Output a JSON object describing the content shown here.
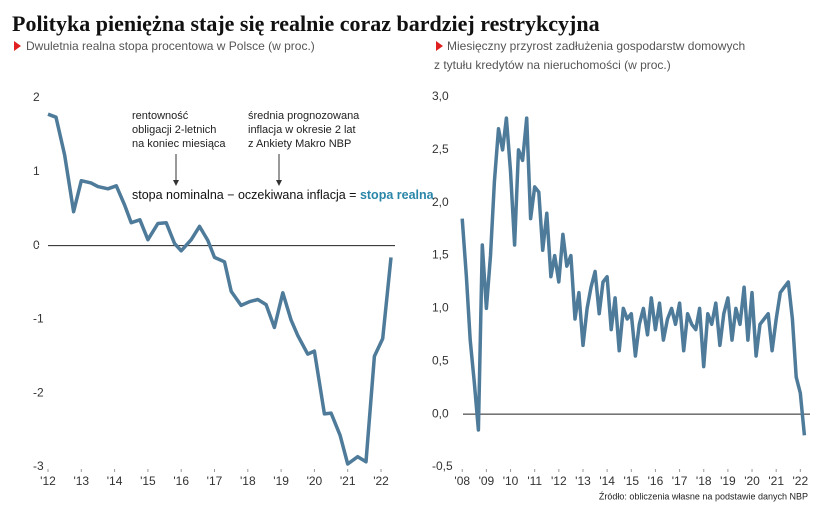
{
  "title": "Polityka pieniężna staje się realnie coraz bardziej restrykcyjna",
  "source": "Źródło: obliczenia własne na podstawie danych NBP",
  "chart_data": [
    {
      "type": "line",
      "subtitle": [
        "Dwuletnia realna stopa procentowa w Polsce (w proc.)"
      ],
      "color": "#4f7b9a",
      "x": [
        2012.0,
        2012.24,
        2012.5,
        2012.77,
        2013.0,
        2013.29,
        2013.5,
        2013.8,
        2014.05,
        2014.3,
        2014.5,
        2014.76,
        2015.0,
        2015.3,
        2015.55,
        2015.8,
        2016.0,
        2016.3,
        2016.55,
        2016.8,
        2017.0,
        2017.3,
        2017.5,
        2017.8,
        2018.05,
        2018.3,
        2018.55,
        2018.8,
        2019.05,
        2019.3,
        2019.5,
        2019.8,
        2020.0,
        2020.3,
        2020.5,
        2020.77,
        2021.0,
        2021.3,
        2021.55,
        2021.8,
        2022.05,
        2022.3
      ],
      "values": [
        1.78,
        1.74,
        1.23,
        0.46,
        0.88,
        0.85,
        0.8,
        0.77,
        0.81,
        0.55,
        0.31,
        0.35,
        0.08,
        0.3,
        0.31,
        0.03,
        -0.07,
        0.08,
        0.26,
        0.07,
        -0.16,
        -0.22,
        -0.62,
        -0.81,
        -0.76,
        -0.73,
        -0.8,
        -1.11,
        -0.64,
        -1.01,
        -1.22,
        -1.47,
        -1.43,
        -2.28,
        -2.27,
        -2.57,
        -2.96,
        -2.86,
        -2.93,
        -1.5,
        -1.26,
        -0.16
      ],
      "xlim": [
        2011.76,
        2022.42
      ],
      "xticks": [
        {
          "value": 2012,
          "label": "'12"
        },
        {
          "value": 2013,
          "label": "'13"
        },
        {
          "value": 2014,
          "label": "'14"
        },
        {
          "value": 2015,
          "label": "'15"
        },
        {
          "value": 2016,
          "label": "'16"
        },
        {
          "value": 2017,
          "label": "'17"
        },
        {
          "value": 2018,
          "label": "'18"
        },
        {
          "value": 2019,
          "label": "'19"
        },
        {
          "value": 2020,
          "label": "'20"
        },
        {
          "value": 2021,
          "label": "'21"
        },
        {
          "value": 2022,
          "label": "'22"
        }
      ],
      "ylim": [
        -3,
        2
      ],
      "yticks": [
        -3,
        -2,
        -1,
        0,
        1,
        2
      ],
      "zero_line": true,
      "annotations": [
        [
          "rentowność",
          "obligacji 2-letnich",
          "na koniec miesiąca"
        ],
        [
          "średnia prognozowana",
          "inflacja w okresie 2 lat",
          "z Ankiety Makro NBP"
        ]
      ],
      "equation": [
        "stopa nominalna − oczekiwana inflacja =",
        "stopa realna"
      ],
      "highlight_color": "#2a86a8"
    },
    {
      "type": "line",
      "subtitle": [
        "Miesięczny przyrost zadłużenia gospodarstw domowych",
        "z tytułu kredytów na nieruchomości (w proc.)"
      ],
      "color": "#4f7b9a",
      "x": [
        2008.0,
        2008.17,
        2008.33,
        2008.5,
        2008.67,
        2008.83,
        2009.0,
        2009.17,
        2009.33,
        2009.5,
        2009.67,
        2009.83,
        2010.0,
        2010.17,
        2010.33,
        2010.5,
        2010.67,
        2010.83,
        2011.0,
        2011.17,
        2011.33,
        2011.5,
        2011.67,
        2011.83,
        2012.0,
        2012.17,
        2012.33,
        2012.5,
        2012.67,
        2012.83,
        2013.0,
        2013.17,
        2013.33,
        2013.5,
        2013.67,
        2013.83,
        2014.0,
        2014.17,
        2014.33,
        2014.5,
        2014.67,
        2014.83,
        2015.0,
        2015.17,
        2015.33,
        2015.5,
        2015.67,
        2015.83,
        2016.0,
        2016.17,
        2016.33,
        2016.5,
        2016.67,
        2016.83,
        2017.0,
        2017.17,
        2017.33,
        2017.5,
        2017.67,
        2017.83,
        2018.0,
        2018.17,
        2018.33,
        2018.5,
        2018.67,
        2018.83,
        2019.0,
        2019.17,
        2019.33,
        2019.5,
        2019.67,
        2019.83,
        2020.0,
        2020.17,
        2020.33,
        2020.5,
        2020.67,
        2020.83,
        2021.0,
        2021.17,
        2021.33,
        2021.5,
        2021.67,
        2021.83,
        2022.0,
        2022.17
      ],
      "values": [
        1.85,
        1.3,
        0.7,
        0.3,
        -0.15,
        1.6,
        1.0,
        1.5,
        2.2,
        2.7,
        2.5,
        2.8,
        2.3,
        1.6,
        2.5,
        2.4,
        2.8,
        1.85,
        2.15,
        2.1,
        1.55,
        1.9,
        1.3,
        1.5,
        1.25,
        1.7,
        1.4,
        1.5,
        0.9,
        1.15,
        0.65,
        1.0,
        1.2,
        1.35,
        0.95,
        1.25,
        1.3,
        0.8,
        1.1,
        0.6,
        1.0,
        0.9,
        0.95,
        0.55,
        0.85,
        1.0,
        0.75,
        1.1,
        0.8,
        1.05,
        0.7,
        0.9,
        1.0,
        0.85,
        1.05,
        0.6,
        0.95,
        0.85,
        0.8,
        1.0,
        0.45,
        0.95,
        0.85,
        1.05,
        0.65,
        0.95,
        1.1,
        0.7,
        1.0,
        0.85,
        1.2,
        0.7,
        1.15,
        0.55,
        0.85,
        0.9,
        0.95,
        0.6,
        0.9,
        1.15,
        1.2,
        1.25,
        0.9,
        0.35,
        0.2,
        -0.2
      ],
      "xlim": [
        2007.7,
        2022.4
      ],
      "xticks": [
        {
          "value": 2008,
          "label": "'08"
        },
        {
          "value": 2009,
          "label": "'09"
        },
        {
          "value": 2010,
          "label": "'10"
        },
        {
          "value": 2011,
          "label": "'11"
        },
        {
          "value": 2012,
          "label": "'12"
        },
        {
          "value": 2013,
          "label": "'13"
        },
        {
          "value": 2014,
          "label": "'14"
        },
        {
          "value": 2015,
          "label": "'15"
        },
        {
          "value": 2016,
          "label": "'16"
        },
        {
          "value": 2017,
          "label": "'17"
        },
        {
          "value": 2018,
          "label": "'18"
        },
        {
          "value": 2019,
          "label": "'19"
        },
        {
          "value": 2020,
          "label": "'20"
        },
        {
          "value": 2021,
          "label": "'21"
        },
        {
          "value": 2022,
          "label": "'22"
        }
      ],
      "ylim": [
        -0.5,
        3.0
      ],
      "yticks": [
        {
          "value": -0.5,
          "label": "-0,5"
        },
        {
          "value": 0.0,
          "label": "0,0"
        },
        {
          "value": 0.5,
          "label": "0,5"
        },
        {
          "value": 1.0,
          "label": "1,0"
        },
        {
          "value": 1.5,
          "label": "1,5"
        },
        {
          "value": 2.0,
          "label": "2,0"
        },
        {
          "value": 2.5,
          "label": "2,5"
        },
        {
          "value": 3.0,
          "label": "3,0"
        }
      ],
      "zero_line": true
    }
  ]
}
